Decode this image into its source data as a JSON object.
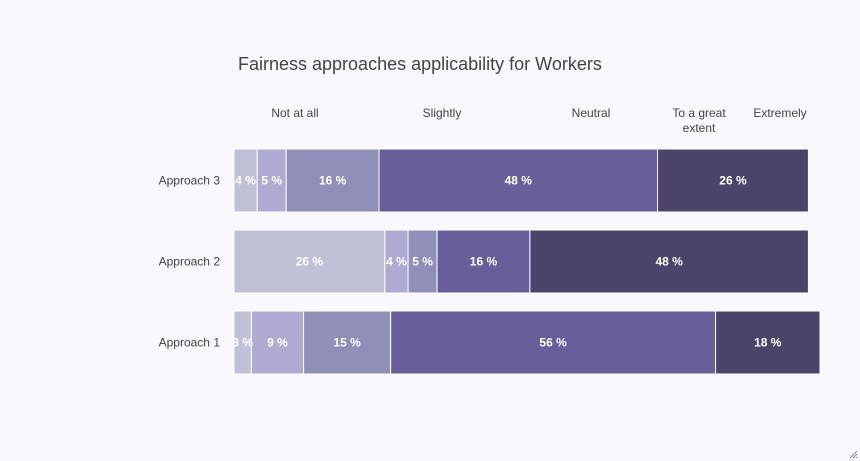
{
  "chart_data": {
    "type": "bar",
    "orientation": "horizontal",
    "stacked": true,
    "title": "Fairness approaches applicability for Workers",
    "legend_labels": [
      "Not at all",
      "Slightly",
      "Neutral",
      "To a great extent",
      "Extremely"
    ],
    "categories": [
      "Approach 3",
      "Approach 2",
      "Approach 1"
    ],
    "series_colors": [
      "#bfc1d6",
      "#aeabd3",
      "#8f8fb8",
      "#675f99",
      "#4d4469"
    ],
    "rows": [
      {
        "label": "Approach 3",
        "values": [
          4,
          5,
          16,
          48,
          26
        ],
        "labels": [
          "4 %",
          "5 %",
          "16 %",
          "48 %",
          "26 %"
        ]
      },
      {
        "label": "Approach 2",
        "values": [
          26,
          4,
          5,
          16,
          48
        ],
        "labels": [
          "26 %",
          "4 %",
          "5 %",
          "16 %",
          "48 %"
        ]
      },
      {
        "label": "Approach 1",
        "values": [
          3,
          9,
          15,
          56,
          18
        ],
        "labels": [
          "3 %",
          "9 %",
          "15 %",
          "56 %",
          "18 %"
        ]
      }
    ],
    "xlim": [
      0,
      101
    ],
    "grid": false
  }
}
